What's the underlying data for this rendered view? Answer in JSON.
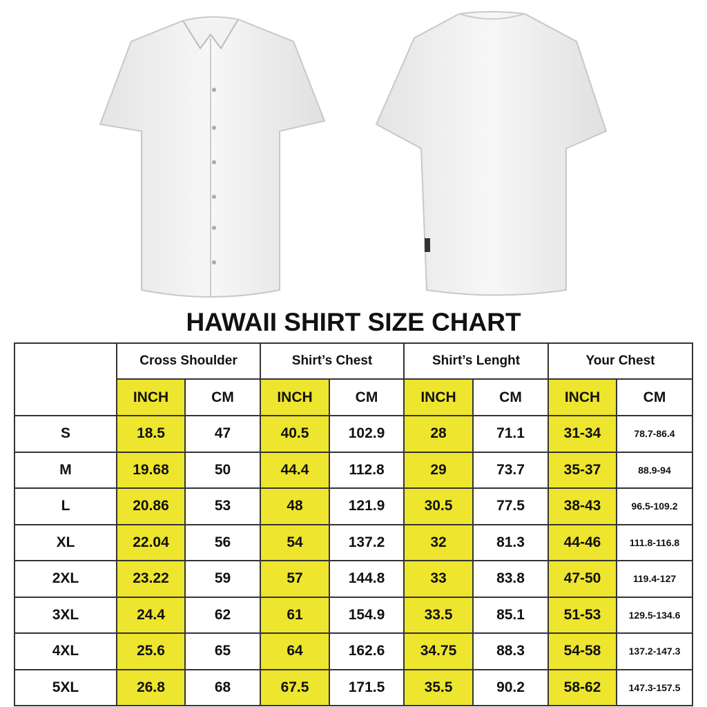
{
  "title": "HAWAII SHIRT SIZE CHART",
  "colors": {
    "highlight": "#eee52e",
    "border": "#333333"
  },
  "groups": [
    "Cross Shoulder",
    "Shirt’s Chest",
    "Shirt’s Lenght",
    "Your Chest"
  ],
  "units": [
    "INCH",
    "CM"
  ],
  "rows": [
    {
      "size": "S",
      "values": [
        "18.5",
        "47",
        "40.5",
        "102.9",
        "28",
        "71.1",
        "31-34",
        "78.7-86.4"
      ]
    },
    {
      "size": "M",
      "values": [
        "19.68",
        "50",
        "44.4",
        "112.8",
        "29",
        "73.7",
        "35-37",
        "88.9-94"
      ]
    },
    {
      "size": "L",
      "values": [
        "20.86",
        "53",
        "48",
        "121.9",
        "30.5",
        "77.5",
        "38-43",
        "96.5-109.2"
      ]
    },
    {
      "size": "XL",
      "values": [
        "22.04",
        "56",
        "54",
        "137.2",
        "32",
        "81.3",
        "44-46",
        "111.8-116.8"
      ]
    },
    {
      "size": "2XL",
      "values": [
        "23.22",
        "59",
        "57",
        "144.8",
        "33",
        "83.8",
        "47-50",
        "119.4-127"
      ]
    },
    {
      "size": "3XL",
      "values": [
        "24.4",
        "62",
        "61",
        "154.9",
        "33.5",
        "85.1",
        "51-53",
        "129.5-134.6"
      ]
    },
    {
      "size": "4XL",
      "values": [
        "25.6",
        "65",
        "64",
        "162.6",
        "34.75",
        "88.3",
        "54-58",
        "137.2-147.3"
      ]
    },
    {
      "size": "5XL",
      "values": [
        "26.8",
        "68",
        "67.5",
        "171.5",
        "35.5",
        "90.2",
        "58-62",
        "147.3-157.5"
      ]
    }
  ]
}
